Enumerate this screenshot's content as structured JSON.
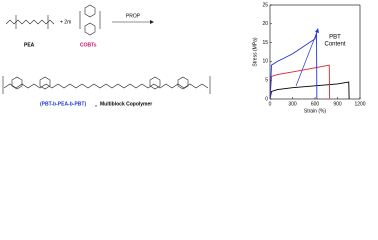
{
  "scheme": {
    "reactant_1": "PEA",
    "coefficient": "+ 2m",
    "reactant_2": "COBTs",
    "condition": "PROP",
    "product": "(PBT-b-PEA-b-PBT)",
    "product_subscript": "n",
    "product_label": "Multiblock Copolymer"
  },
  "chart_data": {
    "type": "line",
    "x_label": "Strain (%)",
    "y_label": "Stress (MPa)",
    "annotation": [
      "PBT",
      "Content"
    ],
    "xlim": [
      0,
      1200
    ],
    "xticks": [
      0,
      300,
      600,
      900,
      1200
    ],
    "ylim": [
      0,
      25
    ],
    "yticks": [
      0,
      5,
      10,
      15,
      20,
      25
    ],
    "series": [
      {
        "color": "#000000",
        "x": [
          0,
          20,
          100,
          300,
          600,
          900,
          1050,
          1055
        ],
        "values": [
          0,
          2,
          2.5,
          3,
          3.5,
          4,
          4.5,
          0
        ]
      },
      {
        "color": "#e0262f",
        "x": [
          0,
          20,
          100,
          300,
          600,
          790,
          795
        ],
        "values": [
          0,
          6,
          6.5,
          7.2,
          8.3,
          9,
          0
        ]
      },
      {
        "color": "#1f35d6",
        "x": [
          0,
          20,
          100,
          300,
          600,
          620,
          625
        ],
        "values": [
          0,
          9,
          10,
          12,
          16,
          17.5,
          0
        ]
      }
    ]
  }
}
